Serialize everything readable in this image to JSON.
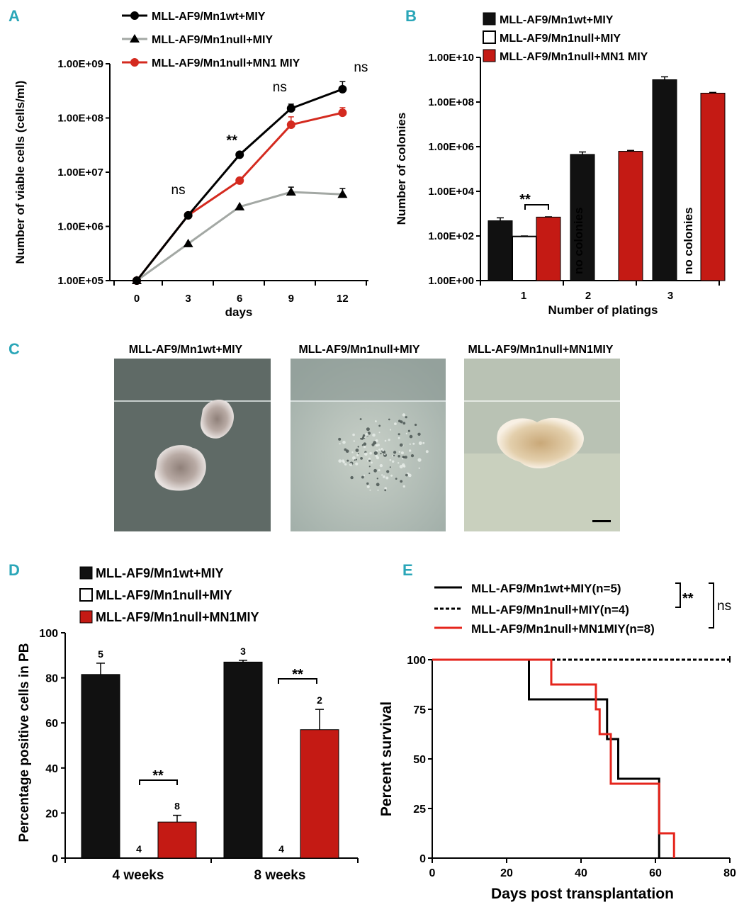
{
  "colors": {
    "wt": "#000000",
    "null_line": "#a3a8a4",
    "mn1": "#d42a1f",
    "bar_wt": "#111111",
    "bar_null": "#ffffff",
    "bar_mn1": "#c41a14",
    "panel_letter": "#2aa6b8"
  },
  "panel_a": {
    "letter": "A",
    "legend": [
      "MLL-AF9/Mn1wt+MIY",
      "MLL-AF9/Mn1null+MIY",
      "MLL-AF9/Mn1null+MN1 MIY"
    ],
    "annotations": [
      {
        "text": "ns",
        "day": 3
      },
      {
        "text": "**",
        "day": 6
      },
      {
        "text": "ns",
        "day": 9
      },
      {
        "text": "ns",
        "day": 12
      }
    ]
  },
  "panel_b": {
    "letter": "B",
    "legend": [
      "MLL-AF9/Mn1wt+MIY",
      "MLL-AF9/Mn1null+MIY",
      "MLL-AF9/Mn1null+MN1 MIY"
    ],
    "significance": "**",
    "no_colonies_text": "no colonies"
  },
  "panel_c": {
    "letter": "C",
    "titles": [
      "MLL-AF9/Mn1wt+MIY",
      "MLL-AF9/Mn1null+MIY",
      "MLL-AF9/Mn1null+MN1MIY"
    ]
  },
  "panel_d": {
    "letter": "D",
    "legend": [
      "MLL-AF9/Mn1wt+MIY",
      "MLL-AF9/Mn1null+MIY",
      "MLL-AF9/Mn1null+MN1MIY"
    ],
    "significance": "**"
  },
  "panel_e": {
    "letter": "E",
    "legend": [
      "MLL-AF9/Mn1wt+MIY(n=5)",
      "MLL-AF9/Mn1null+MIY(n=4)",
      "MLL-AF9/Mn1null+MN1MIY(n=8)"
    ],
    "sig_wt_null": "**",
    "sig_mn1": "ns"
  },
  "chart_data": [
    {
      "id": "A",
      "type": "line",
      "xlabel": "days",
      "ylabel": "Number of viable cells (cells/ml)",
      "x": [
        0,
        3,
        6,
        9,
        12
      ],
      "x_ticks": [
        "0",
        "3",
        "6",
        "9",
        "12"
      ],
      "y_scale": "log",
      "ylim": [
        100000,
        1000000000
      ],
      "y_ticks": [
        "1.00E+05",
        "1.00E+06",
        "1.00E+07",
        "1.00E+08",
        "1.00E+09"
      ],
      "series": [
        {
          "name": "MLL-AF9/Mn1wt+MIY",
          "marker": "circle",
          "values": [
            100000,
            1600000,
            21000000,
            150000000,
            340000000
          ],
          "errors_upper": [
            0,
            0,
            0,
            180000000,
            470000000
          ]
        },
        {
          "name": "MLL-AF9/Mn1null+MIY",
          "marker": "triangle",
          "values": [
            100000,
            480000,
            2300000,
            4300000,
            3900000
          ],
          "errors_upper": [
            0,
            0,
            0,
            5300000,
            5000000
          ]
        },
        {
          "name": "MLL-AF9/Mn1null+MN1 MIY",
          "marker": "circle",
          "values": [
            100000,
            1600000,
            7000000,
            75000000,
            125000000
          ],
          "errors_upper": [
            0,
            0,
            0,
            105000000,
            155000000
          ]
        }
      ]
    },
    {
      "id": "B",
      "type": "bar",
      "xlabel": "Number of platings",
      "ylabel": "Number of colonies",
      "categories": [
        "1",
        "2",
        "3"
      ],
      "y_scale": "log",
      "ylim": [
        1,
        10000000000
      ],
      "y_ticks": [
        "1.00E+00",
        "1.00E+02",
        "1.00E+04",
        "1.00E+06",
        "1.00E+08",
        "1.00E+10"
      ],
      "series": [
        {
          "name": "MLL-AF9/Mn1wt+MIY",
          "values": [
            480,
            450000,
            1000000000
          ],
          "errors_upper": [
            650,
            580000,
            1350000000
          ]
        },
        {
          "name": "MLL-AF9/Mn1null+MIY",
          "values": [
            95,
            null,
            null
          ],
          "errors_upper": [
            100,
            null,
            null
          ]
        },
        {
          "name": "MLL-AF9/Mn1null+MN1 MIY",
          "values": [
            700,
            620000,
            250000000
          ],
          "errors_upper": [
            720,
            680000,
            270000000
          ]
        }
      ]
    },
    {
      "id": "D",
      "type": "bar",
      "xlabel": "",
      "ylabel": "Percentage positive cells in PB",
      "categories": [
        "4 weeks",
        "8 weeks"
      ],
      "ylim": [
        0,
        100
      ],
      "y_ticks": [
        "0",
        "20",
        "40",
        "60",
        "80",
        "100"
      ],
      "series": [
        {
          "name": "MLL-AF9/Mn1wt+MIY",
          "values": [
            81.5,
            87
          ],
          "errors": [
            5,
            0.8
          ],
          "n": [
            "5",
            "3"
          ]
        },
        {
          "name": "MLL-AF9/Mn1null+MIY",
          "values": [
            0,
            0
          ],
          "errors": [
            0,
            0
          ],
          "n": [
            "4",
            "4"
          ]
        },
        {
          "name": "MLL-AF9/Mn1null+MN1MIY",
          "values": [
            16,
            57
          ],
          "errors": [
            3,
            9
          ],
          "n": [
            "8",
            "2"
          ]
        }
      ]
    },
    {
      "id": "E",
      "type": "line",
      "subtype": "kaplan-meier step",
      "xlabel": "Days post transplantation",
      "ylabel": "Percent survival",
      "xlim": [
        0,
        80
      ],
      "x_ticks": [
        "0",
        "20",
        "40",
        "60",
        "80"
      ],
      "ylim": [
        0,
        100
      ],
      "y_ticks": [
        "0",
        "25",
        "50",
        "75",
        "100"
      ],
      "series": [
        {
          "name": "MLL-AF9/Mn1wt+MIY(n=5)",
          "style": "solid",
          "steps": [
            [
              0,
              100
            ],
            [
              26,
              80
            ],
            [
              47,
              60
            ],
            [
              50,
              40
            ],
            [
              61,
              0
            ]
          ]
        },
        {
          "name": "MLL-AF9/Mn1null+MIY(n=4)",
          "style": "dashed",
          "steps": [
            [
              0,
              100
            ],
            [
              80,
              100
            ]
          ]
        },
        {
          "name": "MLL-AF9/Mn1null+MN1MIY(n=8)",
          "style": "solid",
          "steps": [
            [
              0,
              100
            ],
            [
              32,
              87.5
            ],
            [
              44,
              75
            ],
            [
              45,
              62.5
            ],
            [
              48,
              37.5
            ],
            [
              61,
              12.5
            ],
            [
              65,
              0
            ]
          ]
        }
      ]
    }
  ]
}
